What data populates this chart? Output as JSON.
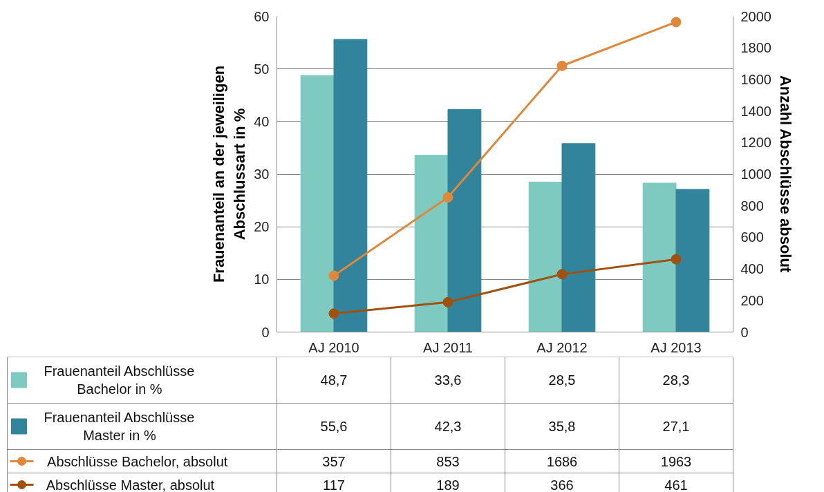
{
  "chart_data": {
    "type": "bar",
    "categories": [
      "AJ 2010",
      "AJ 2011",
      "AJ 2012",
      "AJ 2013"
    ],
    "ylabel": "Frauenanteil an der jeweiligen\nAbschlussart in %",
    "y2label": "Anzahl Abschlüsse absolut",
    "ylim": [
      0,
      60
    ],
    "yticks": [
      0,
      10,
      20,
      30,
      40,
      50,
      60
    ],
    "y2lim": [
      0,
      2000
    ],
    "y2ticks": [
      0,
      200,
      400,
      600,
      800,
      1000,
      1200,
      1400,
      1600,
      1800,
      2000
    ],
    "grid": "y",
    "legend": "bottom",
    "marker": "circle",
    "series": [
      {
        "name": "Frauenanteil Abschlüsse Bachelor in %",
        "color": "#7ecac0",
        "values": [
          48.7,
          33.6,
          28.5,
          28.3
        ],
        "value_labels": [
          "48,7",
          "33,6",
          "28,5",
          "28,3"
        ]
      },
      {
        "name": "Frauenanteil Abschlüsse Master in %",
        "color": "#31849b",
        "values": [
          55.6,
          42.3,
          35.8,
          27.1
        ],
        "value_labels": [
          "55,6",
          "42,3",
          "35,8",
          "27,1"
        ]
      },
      {
        "name": "Abschlüsse Bachelor, absolut",
        "type": "line",
        "axis": "y2",
        "color": "#e0883a",
        "values": [
          357,
          853,
          1686,
          1963
        ],
        "value_labels": [
          "357",
          "853",
          "1686",
          "1963"
        ]
      },
      {
        "name": "Abschlüsse Master, absolut",
        "type": "line",
        "axis": "y2",
        "color": "#a0500f",
        "values": [
          117,
          189,
          366,
          461
        ],
        "value_labels": [
          "117",
          "189",
          "366",
          "461"
        ]
      }
    ]
  }
}
